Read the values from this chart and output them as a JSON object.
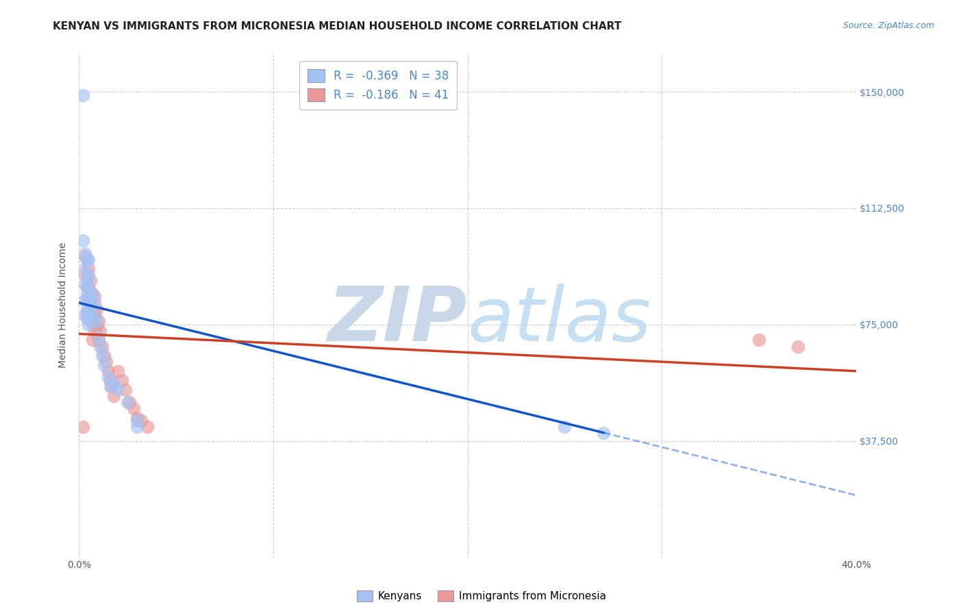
{
  "title": "KENYAN VS IMMIGRANTS FROM MICRONESIA MEDIAN HOUSEHOLD INCOME CORRELATION CHART",
  "source": "Source: ZipAtlas.com",
  "ylabel": "Median Household Income",
  "xlim": [
    0.0,
    0.4
  ],
  "ylim": [
    0,
    162500
  ],
  "yticks": [
    0,
    37500,
    75000,
    112500,
    150000
  ],
  "blue_R": -0.369,
  "blue_N": 38,
  "pink_R": -0.186,
  "pink_N": 41,
  "blue_color": "#a4c2f4",
  "pink_color": "#ea9999",
  "blue_line_color": "#1155cc",
  "pink_line_color": "#cc4125",
  "legend_label_blue": "Kenyans",
  "legend_label_pink": "Immigrants from Micronesia",
  "blue_scatter_x": [
    0.002,
    0.002,
    0.003,
    0.003,
    0.003,
    0.003,
    0.003,
    0.004,
    0.004,
    0.004,
    0.004,
    0.004,
    0.005,
    0.005,
    0.005,
    0.005,
    0.005,
    0.005,
    0.005,
    0.006,
    0.006,
    0.007,
    0.007,
    0.008,
    0.009,
    0.01,
    0.011,
    0.012,
    0.013,
    0.015,
    0.016,
    0.018,
    0.02,
    0.025,
    0.03,
    0.03,
    0.25,
    0.27
  ],
  "blue_scatter_y": [
    149000,
    102000,
    98000,
    93000,
    88000,
    83000,
    78000,
    96000,
    90000,
    85000,
    80000,
    77000,
    96000,
    91000,
    87000,
    83000,
    79000,
    77000,
    75000,
    84000,
    80000,
    85000,
    78000,
    82000,
    76000,
    71000,
    68000,
    65000,
    62000,
    58000,
    55000,
    56000,
    54000,
    50000,
    44000,
    42000,
    42000,
    40000
  ],
  "pink_scatter_x": [
    0.002,
    0.003,
    0.003,
    0.004,
    0.004,
    0.004,
    0.005,
    0.005,
    0.005,
    0.006,
    0.006,
    0.006,
    0.007,
    0.007,
    0.007,
    0.007,
    0.008,
    0.008,
    0.008,
    0.009,
    0.009,
    0.01,
    0.01,
    0.011,
    0.012,
    0.013,
    0.014,
    0.015,
    0.016,
    0.017,
    0.018,
    0.02,
    0.022,
    0.024,
    0.026,
    0.028,
    0.03,
    0.032,
    0.035,
    0.35,
    0.37
  ],
  "pink_scatter_y": [
    42000,
    97000,
    91000,
    87000,
    83000,
    79000,
    93000,
    87000,
    83000,
    89000,
    83000,
    78000,
    85000,
    80000,
    75000,
    70000,
    84000,
    78000,
    73000,
    80000,
    74000,
    76000,
    70000,
    73000,
    68000,
    65000,
    63000,
    60000,
    57000,
    55000,
    52000,
    60000,
    57000,
    54000,
    50000,
    48000,
    45000,
    44000,
    42000,
    70000,
    68000
  ],
  "background_color": "#ffffff",
  "grid_color": "#bbbbbb",
  "watermark_zip_color": "#c8d8e8",
  "watermark_atlas_color": "#d0e8f0",
  "title_fontsize": 11,
  "axis_label_fontsize": 10,
  "tick_fontsize": 10,
  "right_tick_color": "#4a86c8",
  "blue_line_x_solid_end": 0.27,
  "pink_line_intercept": 72000,
  "pink_line_slope": -30000,
  "blue_line_intercept": 82000,
  "blue_line_slope": -155000
}
